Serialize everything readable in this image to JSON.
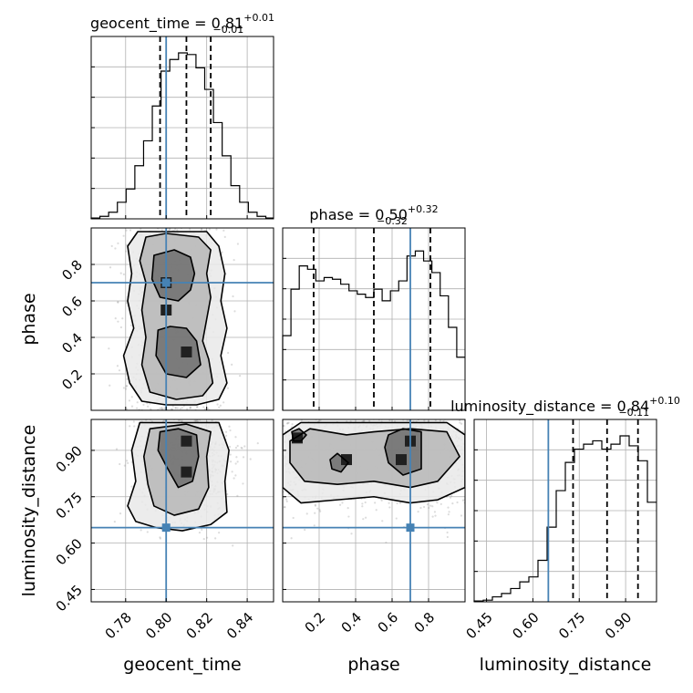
{
  "chart_data": {
    "type": "corner",
    "grid": true,
    "colors": {
      "histogram": "#000000",
      "truth": "#4682b4",
      "grid": "#b0b0b0",
      "scatter": "#9a9a9a",
      "contour": "#000000",
      "density_max": "#202020"
    },
    "parameters": [
      {
        "name": "geocent_time",
        "xlabel": "geocent_time",
        "title_text": "geocent_time = 0.81",
        "title_plus": "+0.01",
        "title_minus": "−0.01",
        "range": [
          0.763,
          0.853
        ],
        "ticks": [
          0.78,
          0.8,
          0.82,
          0.84
        ],
        "tick_labels": [
          "0.78",
          "0.80",
          "0.82",
          "0.84"
        ],
        "truth": 0.8,
        "quantiles": [
          0.797,
          0.81,
          0.822
        ],
        "hist_edges": [
          0.763,
          0.8535
        ],
        "hist_counts": [
          0.005,
          0.015,
          0.04,
          0.1,
          0.18,
          0.32,
          0.47,
          0.68,
          0.89,
          0.96,
          1.0,
          0.99,
          0.91,
          0.78,
          0.58,
          0.38,
          0.2,
          0.1,
          0.04,
          0.015,
          0.005
        ]
      },
      {
        "name": "phase",
        "ylabel": "phase",
        "xlabel": "phase",
        "title_text": "phase = 0.50",
        "title_plus": "+0.32",
        "title_minus": "−0.32",
        "range": [
          0.0,
          1.0
        ],
        "ticks": [
          0.2,
          0.4,
          0.6,
          0.8
        ],
        "tick_labels": [
          "0.2",
          "0.4",
          "0.6",
          "0.8"
        ],
        "truth": 0.7,
        "quantiles": [
          0.17,
          0.5,
          0.81
        ],
        "hist_edges": [
          0.0,
          1.0
        ],
        "hist_counts": [
          0.45,
          0.73,
          0.87,
          0.85,
          0.78,
          0.8,
          0.79,
          0.76,
          0.72,
          0.7,
          0.68,
          0.73,
          0.66,
          0.72,
          0.78,
          0.93,
          0.96,
          0.9,
          0.83,
          0.69,
          0.5,
          0.32
        ]
      },
      {
        "name": "luminosity_distance",
        "ylabel": "luminosity_distance",
        "xlabel": "luminosity_distance",
        "title_text": "luminosity_distance = 0.84",
        "title_plus": "+0.10",
        "title_minus": "−0.11",
        "range": [
          0.41,
          1.0
        ],
        "ticks": [
          0.45,
          0.6,
          0.75,
          0.9
        ],
        "tick_labels": [
          "0.45",
          "0.60",
          "0.75",
          "0.90"
        ],
        "truth": 0.65,
        "quantiles": [
          0.73,
          0.84,
          0.94
        ],
        "hist_edges": [
          0.41,
          1.0
        ],
        "hist_counts": [
          0.005,
          0.01,
          0.03,
          0.05,
          0.08,
          0.12,
          0.15,
          0.25,
          0.45,
          0.67,
          0.84,
          0.92,
          0.95,
          0.97,
          0.92,
          0.95,
          1.0,
          0.94,
          0.85,
          0.6
        ]
      }
    ],
    "pairs": [
      {
        "x": "geocent_time",
        "y": "phase",
        "truth": [
          0.8,
          0.7
        ],
        "ellipse_sigma": [
          0.011,
          0.3
        ],
        "density_peaks": [
          [
            0.8,
            0.7
          ],
          [
            0.81,
            0.32
          ],
          [
            0.8,
            0.55
          ]
        ],
        "contours": [
          {
            "level": "outer",
            "points": [
              [
                0.786,
                0.98
              ],
              [
                0.781,
                0.9
              ],
              [
                0.783,
                0.75
              ],
              [
                0.781,
                0.6
              ],
              [
                0.784,
                0.45
              ],
              [
                0.779,
                0.3
              ],
              [
                0.782,
                0.15
              ],
              [
                0.788,
                0.05
              ],
              [
                0.8,
                0.03
              ],
              [
                0.815,
                0.03
              ],
              [
                0.826,
                0.06
              ],
              [
                0.83,
                0.15
              ],
              [
                0.827,
                0.3
              ],
              [
                0.83,
                0.45
              ],
              [
                0.827,
                0.6
              ],
              [
                0.829,
                0.75
              ],
              [
                0.826,
                0.9
              ],
              [
                0.82,
                0.98
              ]
            ]
          },
          {
            "level": "mid",
            "points": [
              [
                0.79,
                0.95
              ],
              [
                0.787,
                0.82
              ],
              [
                0.79,
                0.7
              ],
              [
                0.788,
                0.55
              ],
              [
                0.79,
                0.4
              ],
              [
                0.788,
                0.25
              ],
              [
                0.792,
                0.1
              ],
              [
                0.805,
                0.06
              ],
              [
                0.818,
                0.08
              ],
              [
                0.823,
                0.15
              ],
              [
                0.821,
                0.28
              ],
              [
                0.818,
                0.38
              ],
              [
                0.82,
                0.5
              ],
              [
                0.822,
                0.62
              ],
              [
                0.82,
                0.75
              ],
              [
                0.822,
                0.88
              ],
              [
                0.816,
                0.95
              ],
              [
                0.8,
                0.97
              ]
            ]
          },
          {
            "level": "inner",
            "points": [
              [
                0.794,
                0.85
              ],
              [
                0.793,
                0.72
              ],
              [
                0.797,
                0.62
              ],
              [
                0.806,
                0.6
              ],
              [
                0.812,
                0.66
              ],
              [
                0.814,
                0.75
              ],
              [
                0.812,
                0.84
              ],
              [
                0.804,
                0.88
              ]
            ]
          },
          {
            "level": "inner",
            "points": [
              [
                0.796,
                0.44
              ],
              [
                0.795,
                0.3
              ],
              [
                0.8,
                0.2
              ],
              [
                0.81,
                0.18
              ],
              [
                0.817,
                0.25
              ],
              [
                0.815,
                0.38
              ],
              [
                0.81,
                0.45
              ],
              [
                0.802,
                0.46
              ]
            ]
          }
        ]
      },
      {
        "x": "geocent_time",
        "y": "luminosity_distance",
        "truth": [
          0.8,
          0.65
        ],
        "ellipse_sigma": [
          0.011,
          0.1
        ],
        "density_peaks": [
          [
            0.81,
            0.93
          ],
          [
            0.81,
            0.83
          ]
        ],
        "contours": [
          {
            "level": "outer",
            "points": [
              [
                0.787,
                0.99
              ],
              [
                0.783,
                0.9
              ],
              [
                0.785,
                0.8
              ],
              [
                0.781,
                0.72
              ],
              [
                0.785,
                0.67
              ],
              [
                0.795,
                0.65
              ],
              [
                0.808,
                0.64
              ],
              [
                0.822,
                0.66
              ],
              [
                0.83,
                0.7
              ],
              [
                0.829,
                0.8
              ],
              [
                0.831,
                0.9
              ],
              [
                0.826,
                0.99
              ]
            ]
          },
          {
            "level": "mid",
            "points": [
              [
                0.792,
                0.97
              ],
              [
                0.789,
                0.88
              ],
              [
                0.791,
                0.79
              ],
              [
                0.794,
                0.72
              ],
              [
                0.804,
                0.69
              ],
              [
                0.816,
                0.71
              ],
              [
                0.821,
                0.78
              ],
              [
                0.82,
                0.88
              ],
              [
                0.822,
                0.96
              ],
              [
                0.81,
                0.985
              ]
            ]
          },
          {
            "level": "inner",
            "points": [
              [
                0.797,
                0.96
              ],
              [
                0.796,
                0.9
              ],
              [
                0.8,
                0.85
              ],
              [
                0.806,
                0.78
              ],
              [
                0.813,
                0.8
              ],
              [
                0.816,
                0.88
              ],
              [
                0.815,
                0.95
              ],
              [
                0.806,
                0.97
              ]
            ]
          }
        ]
      },
      {
        "x": "phase",
        "y": "luminosity_distance",
        "truth": [
          0.7,
          0.65
        ],
        "ellipse_sigma": [
          0.3,
          0.1
        ],
        "density_peaks": [
          [
            0.08,
            0.94
          ],
          [
            0.35,
            0.87
          ],
          [
            0.7,
            0.93
          ],
          [
            0.65,
            0.87
          ]
        ],
        "contours": [
          {
            "level": "outer",
            "points": [
              [
                0.0,
                0.95
              ],
              [
                0.1,
                0.99
              ],
              [
                0.3,
                0.99
              ],
              [
                0.5,
                0.99
              ],
              [
                0.7,
                0.99
              ],
              [
                0.9,
                0.99
              ],
              [
                1.0,
                0.95
              ],
              [
                1.0,
                0.78
              ],
              [
                0.85,
                0.74
              ],
              [
                0.7,
                0.73
              ],
              [
                0.5,
                0.75
              ],
              [
                0.3,
                0.74
              ],
              [
                0.1,
                0.73
              ],
              [
                0.0,
                0.78
              ]
            ]
          },
          {
            "level": "mid",
            "points": [
              [
                0.04,
                0.93
              ],
              [
                0.15,
                0.97
              ],
              [
                0.35,
                0.95
              ],
              [
                0.5,
                0.96
              ],
              [
                0.7,
                0.97
              ],
              [
                0.9,
                0.96
              ],
              [
                0.97,
                0.88
              ],
              [
                0.85,
                0.8
              ],
              [
                0.7,
                0.78
              ],
              [
                0.5,
                0.8
              ],
              [
                0.3,
                0.79
              ],
              [
                0.12,
                0.8
              ],
              [
                0.04,
                0.86
              ]
            ]
          },
          {
            "level": "inner",
            "points": [
              [
                0.05,
                0.96
              ],
              [
                0.09,
                0.97
              ],
              [
                0.13,
                0.95
              ],
              [
                0.1,
                0.93
              ],
              [
                0.06,
                0.93
              ]
            ]
          },
          {
            "level": "inner",
            "points": [
              [
                0.26,
                0.87
              ],
              [
                0.3,
                0.89
              ],
              [
                0.36,
                0.86
              ],
              [
                0.32,
                0.83
              ],
              [
                0.27,
                0.84
              ]
            ]
          },
          {
            "level": "inner",
            "points": [
              [
                0.58,
                0.95
              ],
              [
                0.66,
                0.97
              ],
              [
                0.76,
                0.96
              ],
              [
                0.76,
                0.84
              ],
              [
                0.66,
                0.82
              ],
              [
                0.58,
                0.86
              ],
              [
                0.56,
                0.91
              ]
            ]
          }
        ]
      }
    ]
  }
}
